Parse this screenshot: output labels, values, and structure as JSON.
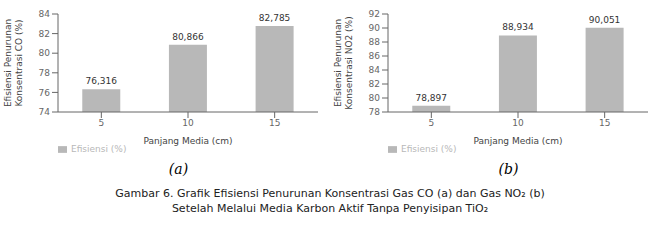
{
  "chart_data": [
    {
      "type": "bar",
      "subtitle": "(a)",
      "xlabel": "Panjang Media (cm)",
      "ylabel": "Efisiensi Penurunan\nKonsentrasi CO (%)",
      "categories": [
        "5",
        "10",
        "15"
      ],
      "series": [
        {
          "name": "Efisiensi (%)",
          "color": "#b8b8b8",
          "values": [
            76.316,
            80.866,
            82.785
          ],
          "value_labels": [
            "76,316",
            "80,866",
            "82,785"
          ]
        }
      ],
      "ylim": [
        74,
        84
      ],
      "yticks": [
        74,
        76,
        78,
        80,
        82,
        84
      ],
      "grid": false,
      "legend": "bottom",
      "data_labels": true
    },
    {
      "type": "bar",
      "subtitle": "(b)",
      "xlabel": "Panjang Media (cm)",
      "ylabel": "Efisiensi Penurunan\nKonsentrasi NO2 (%)",
      "categories": [
        "5",
        "10",
        "15"
      ],
      "series": [
        {
          "name": "Efisiensi (%)",
          "color": "#b8b8b8",
          "values": [
            78.897,
            88.934,
            90.051
          ],
          "value_labels": [
            "78,897",
            "88,934",
            "90,051"
          ]
        }
      ],
      "ylim": [
        78,
        92
      ],
      "yticks": [
        78,
        80,
        82,
        84,
        86,
        88,
        90,
        92
      ],
      "grid": false,
      "legend": "bottom",
      "data_labels": true
    }
  ],
  "annotations": [
    "Gambar 6. Grafik Efisiensi Penurunan Konsentrasi Gas CO (a) dan Gas NO₂ (b)",
    "Setelah Melalui Media Karbon Aktif Tanpa Penyisipan TiO₂"
  ]
}
